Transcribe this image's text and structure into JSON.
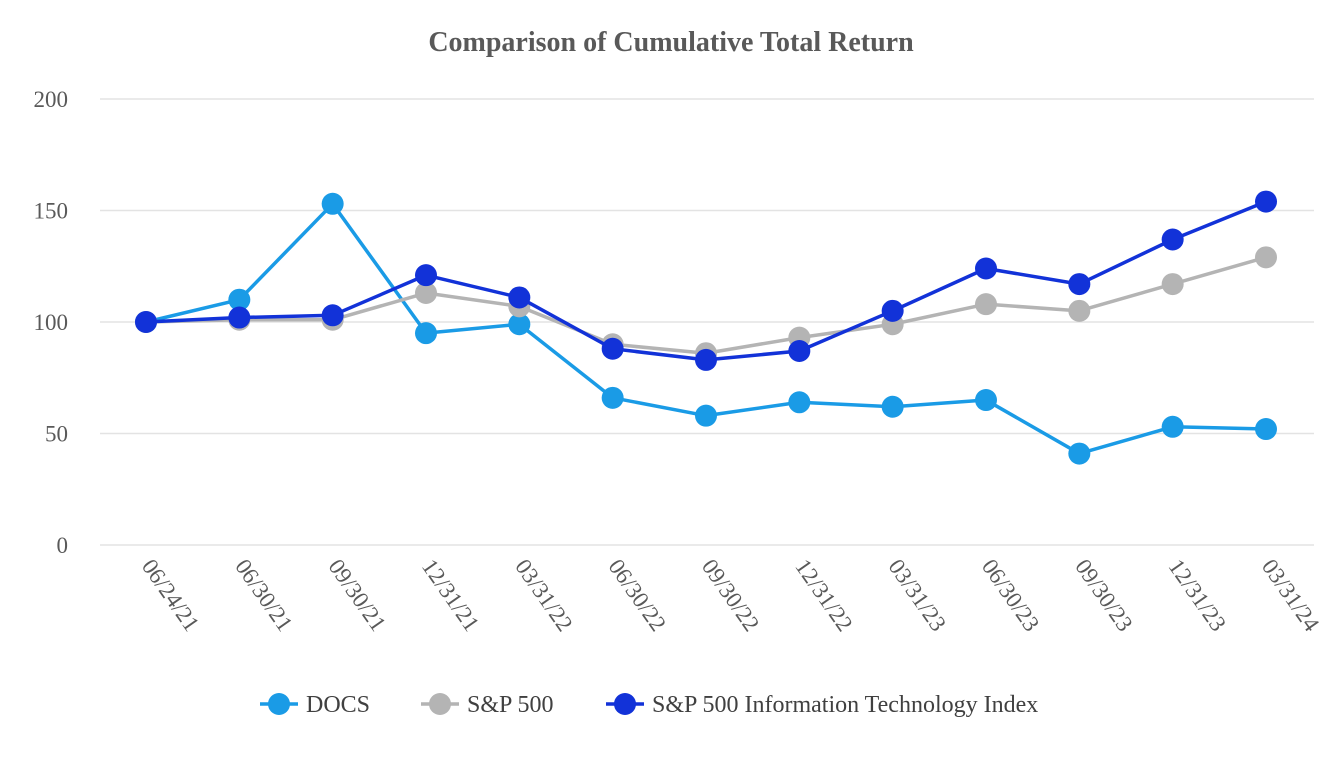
{
  "chart_data": {
    "type": "line",
    "title": "Comparison of Cumulative Total Return",
    "xlabel": "",
    "ylabel": "",
    "ylim": [
      0,
      200
    ],
    "yticks": [
      0,
      50,
      100,
      150,
      200
    ],
    "grid": true,
    "legend_position": "bottom",
    "categories": [
      "06/24/21",
      "06/30/21",
      "09/30/21",
      "12/31/21",
      "03/31/22",
      "06/30/22",
      "09/30/22",
      "12/31/22",
      "03/31/23",
      "06/30/23",
      "09/30/23",
      "12/31/23",
      "03/31/24"
    ],
    "series": [
      {
        "name": "DOCS",
        "color": "#1a9be6",
        "values": [
          100,
          110,
          153,
          95,
          99,
          66,
          58,
          64,
          62,
          65,
          41,
          53,
          52
        ]
      },
      {
        "name": "S&P 500",
        "color": "#b4b4b4",
        "values": [
          100,
          101,
          101,
          113,
          107,
          90,
          86,
          93,
          99,
          108,
          105,
          117,
          129
        ]
      },
      {
        "name": "S&P 500 Information Technology Index",
        "color": "#1232d8",
        "values": [
          100,
          102,
          103,
          121,
          111,
          88,
          83,
          87,
          105,
          124,
          117,
          137,
          154
        ]
      }
    ]
  }
}
